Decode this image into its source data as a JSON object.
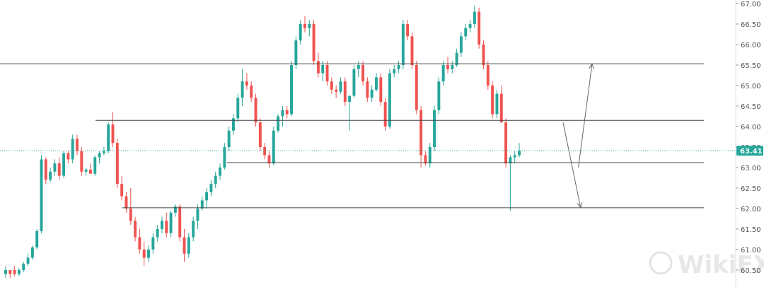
{
  "chart_data": {
    "type": "candlestick",
    "title": "",
    "xlabel": "",
    "ylabel": "",
    "ylim": [
      60.4,
      67.0
    ],
    "y_ticks": [
      "60.50",
      "61.00",
      "61.50",
      "62.00",
      "62.50",
      "63.00",
      "63.50",
      "64.00",
      "64.50",
      "65.00",
      "65.50",
      "66.00",
      "66.50",
      "67.00"
    ],
    "current_price": "63.41",
    "colors": {
      "up": "#26a69a",
      "down": "#ef5350",
      "line": "#444444",
      "arrow": "#666666",
      "price_tag": "#26a69a"
    },
    "grid": false,
    "candles": [
      [
        60.4,
        60.6,
        60.3,
        60.5
      ],
      [
        60.5,
        60.5,
        60.3,
        60.4
      ],
      [
        60.5,
        60.6,
        60.35,
        60.4
      ],
      [
        60.4,
        60.55,
        60.35,
        60.5
      ],
      [
        60.5,
        60.7,
        60.45,
        60.65
      ],
      [
        60.65,
        60.9,
        60.6,
        60.8
      ],
      [
        60.8,
        61.1,
        60.75,
        61.05
      ],
      [
        61.05,
        61.5,
        61.0,
        61.45
      ],
      [
        61.45,
        63.3,
        61.4,
        63.2
      ],
      [
        63.2,
        63.25,
        62.6,
        62.7
      ],
      [
        62.7,
        63.0,
        62.65,
        62.9
      ],
      [
        62.9,
        63.2,
        62.8,
        63.1
      ],
      [
        63.1,
        63.25,
        62.7,
        62.8
      ],
      [
        62.8,
        63.4,
        62.75,
        63.35
      ],
      [
        63.35,
        63.4,
        63.1,
        63.2
      ],
      [
        63.2,
        63.8,
        63.1,
        63.7
      ],
      [
        63.7,
        63.8,
        63.3,
        63.4
      ],
      [
        63.4,
        63.5,
        62.8,
        62.9
      ],
      [
        62.9,
        63.0,
        62.8,
        62.95
      ],
      [
        62.95,
        63.1,
        62.85,
        62.85
      ],
      [
        62.85,
        63.3,
        62.8,
        63.25
      ],
      [
        63.25,
        63.4,
        63.1,
        63.35
      ],
      [
        63.35,
        63.5,
        63.3,
        63.4
      ],
      [
        63.4,
        64.1,
        63.35,
        64.05
      ],
      [
        64.05,
        64.35,
        63.5,
        63.6
      ],
      [
        63.6,
        63.7,
        62.5,
        62.6
      ],
      [
        62.6,
        62.8,
        62.2,
        62.3
      ],
      [
        62.3,
        62.4,
        61.9,
        62.0
      ],
      [
        62.0,
        62.5,
        61.6,
        61.7
      ],
      [
        61.7,
        61.8,
        61.2,
        61.3
      ],
      [
        61.3,
        61.5,
        60.9,
        61.0
      ],
      [
        61.0,
        61.2,
        60.6,
        60.8
      ],
      [
        60.8,
        61.1,
        60.7,
        61.0
      ],
      [
        61.0,
        61.4,
        60.9,
        61.3
      ],
      [
        61.3,
        61.6,
        61.2,
        61.5
      ],
      [
        61.5,
        61.8,
        61.4,
        61.7
      ],
      [
        61.7,
        61.9,
        61.3,
        61.4
      ],
      [
        61.4,
        61.95,
        61.3,
        61.9
      ],
      [
        61.9,
        62.1,
        61.8,
        62.05
      ],
      [
        62.05,
        62.1,
        61.2,
        61.3
      ],
      [
        61.3,
        61.5,
        60.7,
        60.9
      ],
      [
        60.9,
        61.4,
        60.8,
        61.3
      ],
      [
        61.3,
        61.8,
        61.2,
        61.7
      ],
      [
        61.7,
        62.1,
        61.5,
        62.0
      ],
      [
        62.0,
        62.3,
        61.95,
        62.2
      ],
      [
        62.2,
        62.5,
        62.0,
        62.4
      ],
      [
        62.4,
        62.7,
        62.3,
        62.6
      ],
      [
        62.6,
        62.9,
        62.5,
        62.8
      ],
      [
        62.8,
        63.1,
        62.7,
        63.0
      ],
      [
        63.0,
        63.6,
        62.95,
        63.5
      ],
      [
        63.5,
        64.0,
        63.4,
        63.9
      ],
      [
        63.9,
        64.3,
        63.8,
        64.2
      ],
      [
        64.2,
        64.8,
        64.1,
        64.7
      ],
      [
        64.7,
        65.4,
        64.5,
        65.1
      ],
      [
        65.1,
        65.3,
        64.9,
        65.0
      ],
      [
        65.0,
        65.1,
        64.6,
        64.7
      ],
      [
        64.7,
        64.8,
        64.0,
        64.1
      ],
      [
        64.1,
        64.2,
        63.4,
        63.5
      ],
      [
        63.5,
        63.6,
        63.2,
        63.3
      ],
      [
        63.3,
        63.4,
        63.0,
        63.1
      ],
      [
        63.1,
        64.0,
        63.05,
        63.9
      ],
      [
        63.9,
        64.3,
        63.85,
        64.25
      ],
      [
        64.25,
        64.5,
        64.0,
        64.4
      ],
      [
        64.4,
        64.5,
        64.2,
        64.3
      ],
      [
        64.3,
        65.6,
        64.25,
        65.5
      ],
      [
        65.5,
        66.2,
        65.4,
        66.1
      ],
      [
        66.1,
        66.6,
        66.0,
        66.5
      ],
      [
        66.5,
        66.7,
        66.3,
        66.4
      ],
      [
        66.4,
        66.6,
        66.2,
        66.5
      ],
      [
        66.5,
        66.6,
        65.5,
        65.6
      ],
      [
        65.6,
        65.8,
        65.2,
        65.3
      ],
      [
        65.3,
        65.6,
        65.1,
        65.5
      ],
      [
        65.5,
        65.6,
        65.0,
        65.1
      ],
      [
        65.1,
        65.2,
        64.8,
        64.9
      ],
      [
        64.9,
        65.0,
        64.7,
        64.85
      ],
      [
        64.85,
        65.2,
        64.8,
        65.1
      ],
      [
        65.1,
        65.2,
        64.5,
        64.6
      ],
      [
        64.6,
        64.7,
        63.9,
        64.75
      ],
      [
        64.75,
        65.5,
        64.7,
        65.4
      ],
      [
        65.4,
        65.6,
        65.2,
        65.5
      ],
      [
        65.5,
        65.6,
        65.0,
        65.1
      ],
      [
        65.1,
        65.2,
        64.6,
        64.7
      ],
      [
        64.7,
        65.0,
        64.6,
        64.9
      ],
      [
        64.9,
        65.3,
        64.85,
        65.2
      ],
      [
        65.2,
        65.3,
        64.5,
        64.6
      ],
      [
        64.6,
        64.7,
        63.9,
        64.0
      ],
      [
        64.0,
        65.4,
        63.95,
        65.3
      ],
      [
        65.3,
        65.5,
        65.2,
        65.4
      ],
      [
        65.4,
        65.6,
        65.3,
        65.5
      ],
      [
        65.5,
        66.6,
        65.4,
        66.5
      ],
      [
        66.5,
        66.6,
        66.1,
        66.2
      ],
      [
        66.2,
        66.3,
        65.4,
        65.5
      ],
      [
        65.5,
        65.6,
        64.3,
        64.4
      ],
      [
        64.4,
        64.5,
        63.0,
        63.3
      ],
      [
        63.3,
        63.4,
        63.05,
        63.1
      ],
      [
        63.1,
        63.6,
        63.0,
        63.5
      ],
      [
        63.5,
        64.5,
        63.4,
        64.4
      ],
      [
        64.4,
        65.2,
        64.3,
        65.1
      ],
      [
        65.1,
        65.6,
        65.0,
        65.5
      ],
      [
        65.5,
        65.7,
        65.3,
        65.4
      ],
      [
        65.4,
        65.6,
        65.3,
        65.5
      ],
      [
        65.5,
        65.9,
        65.45,
        65.8
      ],
      [
        65.8,
        66.3,
        65.7,
        66.2
      ],
      [
        66.2,
        66.5,
        66.1,
        66.4
      ],
      [
        66.4,
        66.6,
        66.3,
        66.5
      ],
      [
        66.5,
        66.95,
        66.4,
        66.8
      ],
      [
        66.8,
        66.9,
        65.9,
        66.0
      ],
      [
        66.0,
        66.1,
        65.4,
        65.5
      ],
      [
        65.5,
        65.6,
        64.9,
        65.0
      ],
      [
        65.0,
        65.1,
        64.2,
        64.3
      ],
      [
        64.3,
        64.9,
        64.2,
        64.8
      ],
      [
        64.8,
        65.0,
        64.1,
        64.1
      ],
      [
        64.1,
        64.2,
        63.0,
        63.1
      ],
      [
        63.1,
        63.3,
        61.95,
        63.25
      ],
      [
        63.25,
        63.4,
        63.1,
        63.3
      ],
      [
        63.3,
        63.6,
        63.25,
        63.41
      ]
    ],
    "horizontal_levels": [
      {
        "price": 65.53,
        "x_start_frac": 0.0
      },
      {
        "price": 64.15,
        "x_start_frac": 0.125
      },
      {
        "price": 63.12,
        "x_start_frac": 0.297
      },
      {
        "price": 62.02,
        "x_start_frac": 0.16
      }
    ],
    "arrows": [
      {
        "from": [
          63.0,
          0.757
        ],
        "to": [
          65.53,
          0.775
        ]
      },
      {
        "from": [
          64.1,
          0.737
        ],
        "to": [
          62.02,
          0.76
        ]
      }
    ],
    "watermark": "WikiFX"
  }
}
